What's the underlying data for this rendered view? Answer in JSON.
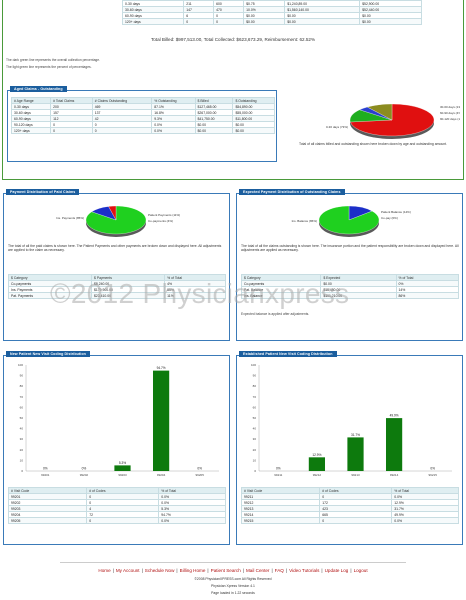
{
  "top_table": {
    "rows": [
      [
        "0-30 days",
        "211",
        "600",
        "$0.75",
        "$1,240,89.00",
        "$52,900.00"
      ],
      [
        "30-60 days",
        "147",
        "470",
        "10.0%",
        "$1,560,140.00",
        "$52,440.00"
      ],
      [
        "60-90 days",
        "6",
        "0",
        "$0.00",
        "$0.00",
        "$0.00"
      ],
      [
        "120+ days",
        "0",
        "0",
        "$0.00",
        "$0.00",
        "$0.00"
      ]
    ]
  },
  "summary_line": "Total Billed: $997,513.00, Total Collected: $623,673.29, Reimbursement: 62.52%",
  "notes": [
    "The dark green line represents the overall collection percentage.",
    "The light green line represents the percent of percentages."
  ],
  "aged_claims": {
    "title": "Aged Claims - Outstanding",
    "headers": [
      "# Age Range",
      "# Total Claims",
      "# Claims Outstanding",
      "% Outstanding",
      "$ Billed",
      "$ Outstanding"
    ],
    "rows": [
      [
        "0-30 days",
        "200",
        "469",
        "87.1%",
        "$127,465.00",
        "$54,890.00"
      ],
      [
        "30-60 days",
        "157",
        "137",
        "16.8%",
        "$267,000.00",
        "$55,000.00"
      ],
      [
        "60-90 days",
        "112",
        "42",
        "9.3%",
        "$41,750.00",
        "$11,800.00"
      ],
      [
        "90-120 days",
        "0",
        "0",
        "0.0%",
        "$0.00",
        "$0.00"
      ],
      [
        "120+ days",
        "0",
        "0",
        "0.0%",
        "$0.00",
        "$0.00"
      ]
    ],
    "caption": "Total of all claims billed and outstanding shown here broken down by age and outstanding amount.",
    "pie": {
      "slices": [
        {
          "label": "0-30 days (73%)",
          "value": 73,
          "color": "#e01010"
        },
        {
          "label": "30-60 days (13%)",
          "value": 13,
          "color": "#1fae1f"
        },
        {
          "label": "60-90 days (4%)",
          "value": 4,
          "color": "#2a3fd0"
        },
        {
          "label": "90-120 days (10%)",
          "value": 10,
          "color": "#8c8c20"
        }
      ]
    }
  },
  "paid_claims": {
    "title": "Payment Distribution of Paid Claims",
    "pie_labels": [
      "Ins. Payments (85%)",
      "Patient Payments (11%)",
      "Co-payments (4%)"
    ],
    "pie_values": [
      85,
      11,
      4
    ],
    "pie_colors": [
      "#1fd01f",
      "#1c2fc8",
      "#e01010"
    ],
    "caption": "The total of all the paid claims is shown here. The Patient Payments and other payments are broken down and displayed here. All adjustments are applied to the claim as necessary.",
    "headers": [
      "$ Category",
      "$ Payments",
      "% of Total"
    ],
    "rows": [
      [
        "Co-payments",
        "$8,240.00",
        "4%"
      ],
      [
        "Ins. Payments",
        "$179,900.00",
        "85%"
      ],
      [
        "Pat. Payments",
        "$23,410.00",
        "11%"
      ]
    ]
  },
  "expected_payment": {
    "title": "Expected Payment Distribution of Outstanding Claims",
    "pie_labels": [
      "Patient Balance (14%)",
      "Ins. Balance (86%)",
      "Co-pay (0%)"
    ],
    "pie_values": [
      14,
      86,
      0
    ],
    "pie_colors": [
      "#1c2fc8",
      "#1fd01f",
      "#e01010"
    ],
    "caption": "The total of all the claims outstanding is shown here. The insurance portion and the patient responsibility are broken down and displayed here. All adjustments are applied as necessary.",
    "headers": [
      "$ Category",
      "$ Expected",
      "% of Total"
    ],
    "rows": [
      [
        "Co-payments",
        "$0.00",
        "0%"
      ],
      [
        "Pat. Balance",
        "$16,480.00",
        "14%"
      ],
      [
        "Ins. Balance",
        "$101,210.00",
        "86%"
      ]
    ],
    "footnote": "Expected balance is applied after adjustments."
  },
  "new_patient": {
    "title": "New Patient New Visit Coding Distribution",
    "chart_data": {
      "type": "bar",
      "categories": [
        "99201",
        "99202",
        "99203",
        "99204",
        "99205"
      ],
      "values": [
        0,
        0,
        5.3,
        94.7,
        0
      ],
      "data_labels": [
        "0%",
        "0%",
        "5.3%",
        "94.7%",
        "0%"
      ],
      "ylim": [
        0,
        100
      ],
      "yticks": [
        "100",
        "90",
        "80",
        "70",
        "60",
        "50",
        "40",
        "30",
        "20",
        "10",
        "0"
      ]
    },
    "headers": [
      "# Visit Code",
      "# of Codes",
      "% of Total"
    ],
    "rows": [
      [
        "99201",
        "0",
        "0.0%"
      ],
      [
        "99202",
        "0",
        "0.0%"
      ],
      [
        "99203",
        "4",
        "5.3%"
      ],
      [
        "99204",
        "72",
        "94.7%"
      ],
      [
        "99205",
        "0",
        "0.0%"
      ]
    ]
  },
  "established_patient": {
    "title": "Established Patient New Visit Coding Distribution",
    "chart_data": {
      "type": "bar",
      "categories": [
        "99211",
        "99212",
        "99213",
        "99214",
        "99215"
      ],
      "values": [
        0,
        12.9,
        31.7,
        49.9,
        0
      ],
      "data_labels": [
        "0%",
        "12.9%",
        "31.7%",
        "49.9%",
        "0%"
      ],
      "ylim": [
        0,
        100
      ],
      "yticks": [
        "100",
        "90",
        "80",
        "70",
        "60",
        "50",
        "40",
        "30",
        "20",
        "10",
        "0"
      ]
    },
    "headers": [
      "# Visit Code",
      "# of Codes",
      "% of Total"
    ],
    "rows": [
      [
        "99211",
        "0",
        "0.0%"
      ],
      [
        "99212",
        "172",
        "12.9%"
      ],
      [
        "99213",
        "423",
        "31.7%"
      ],
      [
        "99214",
        "665",
        "49.9%"
      ],
      [
        "99215",
        "0",
        "0.0%"
      ]
    ]
  },
  "watermark": "©2012 Physicianxpress",
  "footer": {
    "links": [
      "Home",
      "My Account",
      "Schedule Now",
      "Billing Home",
      "Patient Search",
      "Mail Center",
      "FAQ",
      "Video Tutorials",
      "Update Log",
      "Logout"
    ],
    "copyright": "©2008 PhysicianXPRESS.com All Rights Reserved",
    "powered": "Physician Xpress Version 4.1",
    "served": "Page loaded in 1.22 seconds"
  },
  "colors": {
    "accent_blue": "#1b5e9e",
    "frame_green": "#4a9a3a",
    "bar_green": "#0d7a0d",
    "link_red": "#b01010"
  }
}
